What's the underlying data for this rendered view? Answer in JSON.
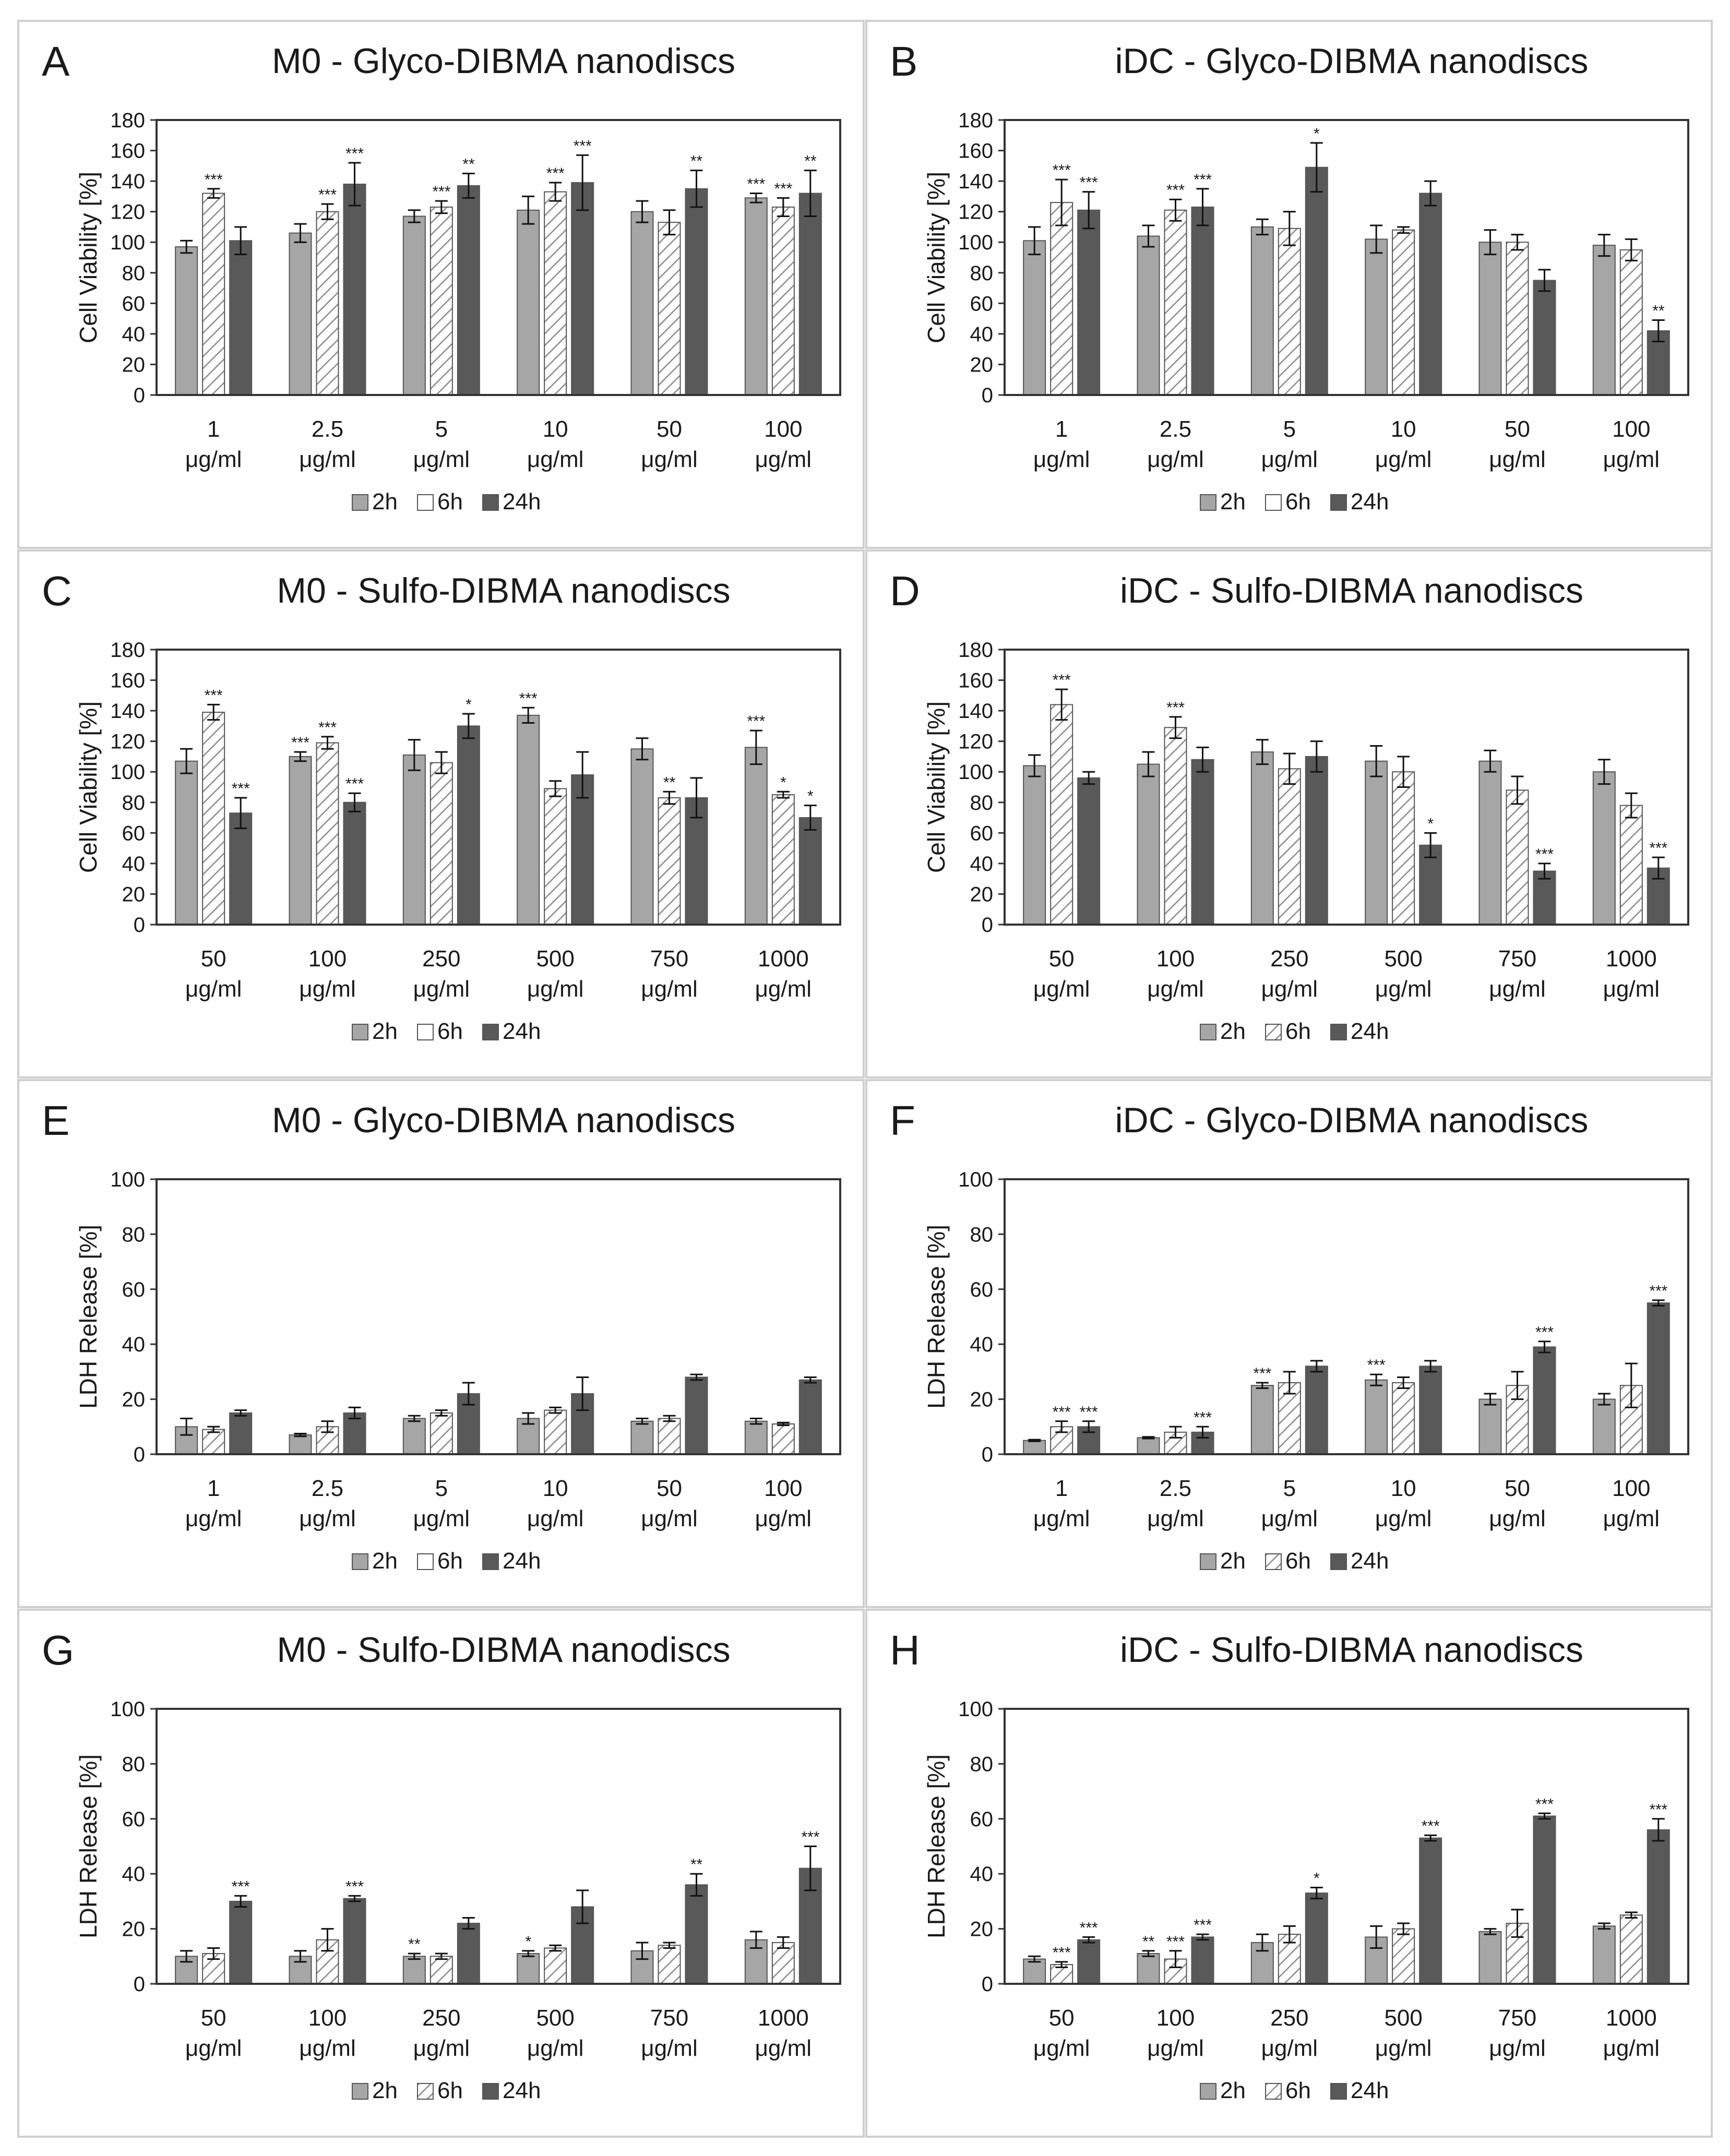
{
  "figure": {
    "legend_entries": [
      "2h",
      "6h",
      "24h"
    ],
    "series_colors": {
      "2h": "#a6a6a6",
      "6h": "#ffffff",
      "24h": "#595959"
    },
    "hatch_color": "#8c8c8c",
    "frame_color": "#333333",
    "text_color": "#1a1a1a"
  },
  "chart_data": [
    {
      "panel": "A",
      "type": "bar",
      "title": "M0 - Glyco-DIBMA nanodiscs",
      "ylabel": "Cell Viability [%]",
      "ylim": [
        0,
        180
      ],
      "ytick_step": 20,
      "categories": [
        [
          "1",
          "μg/ml"
        ],
        [
          "2.5",
          "μg/ml"
        ],
        [
          "5",
          "μg/ml"
        ],
        [
          "10",
          "μg/ml"
        ],
        [
          "50",
          "μg/ml"
        ],
        [
          "100",
          "μg/ml"
        ]
      ],
      "legend_hatched": [
        false,
        false,
        false
      ],
      "series": [
        {
          "name": "2h",
          "values": [
            97,
            106,
            117,
            121,
            120,
            129
          ],
          "errors": [
            4,
            6,
            4,
            9,
            7,
            3
          ],
          "sig": [
            "",
            "",
            "",
            "",
            "",
            "***"
          ]
        },
        {
          "name": "6h",
          "values": [
            132,
            120,
            123,
            133,
            113,
            123
          ],
          "errors": [
            3,
            5,
            4,
            6,
            8,
            6
          ],
          "sig": [
            "***",
            "***",
            "***",
            "***",
            "",
            "***"
          ]
        },
        {
          "name": "24h",
          "values": [
            101,
            138,
            137,
            139,
            135,
            132
          ],
          "errors": [
            9,
            14,
            8,
            18,
            12,
            15
          ],
          "sig": [
            "",
            "***",
            "**",
            "***",
            "**",
            "**"
          ]
        }
      ]
    },
    {
      "panel": "B",
      "type": "bar",
      "title": "iDC - Glyco-DIBMA nanodiscs",
      "ylabel": "Cell Viability [%]",
      "ylim": [
        0,
        180
      ],
      "ytick_step": 20,
      "categories": [
        [
          "1",
          "μg/ml"
        ],
        [
          "2.5",
          "μg/ml"
        ],
        [
          "5",
          "μg/ml"
        ],
        [
          "10",
          "μg/ml"
        ],
        [
          "50",
          "μg/ml"
        ],
        [
          "100",
          "μg/ml"
        ]
      ],
      "legend_hatched": [
        false,
        false,
        false
      ],
      "series": [
        {
          "name": "2h",
          "values": [
            101,
            104,
            110,
            102,
            100,
            98
          ],
          "errors": [
            9,
            7,
            5,
            9,
            8,
            7
          ],
          "sig": [
            "",
            "",
            "",
            "",
            "",
            ""
          ]
        },
        {
          "name": "6h",
          "values": [
            126,
            121,
            109,
            108,
            100,
            95
          ],
          "errors": [
            15,
            7,
            11,
            2,
            5,
            7
          ],
          "sig": [
            "***",
            "***",
            "",
            "",
            "",
            ""
          ]
        },
        {
          "name": "24h",
          "values": [
            121,
            123,
            149,
            132,
            75,
            42
          ],
          "errors": [
            12,
            12,
            16,
            8,
            7,
            7
          ],
          "sig": [
            "***",
            "***",
            "*",
            "",
            "",
            "**"
          ]
        }
      ]
    },
    {
      "panel": "C",
      "type": "bar",
      "title": "M0 - Sulfo-DIBMA nanodiscs",
      "ylabel": "Cell Viability [%]",
      "ylim": [
        0,
        180
      ],
      "ytick_step": 20,
      "categories": [
        [
          "50",
          "μg/ml"
        ],
        [
          "100",
          "μg/ml"
        ],
        [
          "250",
          "μg/ml"
        ],
        [
          "500",
          "μg/ml"
        ],
        [
          "750",
          "μg/ml"
        ],
        [
          "1000",
          "μg/ml"
        ]
      ],
      "legend_hatched": [
        false,
        false,
        false
      ],
      "series": [
        {
          "name": "2h",
          "values": [
            107,
            110,
            111,
            137,
            115,
            116
          ],
          "errors": [
            8,
            3,
            10,
            5,
            7,
            11
          ],
          "sig": [
            "",
            "***",
            "",
            "***",
            "",
            "***"
          ]
        },
        {
          "name": "6h",
          "values": [
            139,
            119,
            106,
            89,
            83,
            85
          ],
          "errors": [
            5,
            4,
            7,
            5,
            4,
            2
          ],
          "sig": [
            "***",
            "***",
            "",
            "",
            "**",
            "*"
          ]
        },
        {
          "name": "24h",
          "values": [
            73,
            80,
            130,
            98,
            83,
            70
          ],
          "errors": [
            10,
            6,
            8,
            15,
            13,
            8
          ],
          "sig": [
            "***",
            "***",
            "*",
            "",
            "",
            "*"
          ]
        }
      ]
    },
    {
      "panel": "D",
      "type": "bar",
      "title": "iDC - Sulfo-DIBMA nanodiscs",
      "ylabel": "Cell Viability [%]",
      "ylim": [
        0,
        180
      ],
      "ytick_step": 20,
      "categories": [
        [
          "50",
          "μg/ml"
        ],
        [
          "100",
          "μg/ml"
        ],
        [
          "250",
          "μg/ml"
        ],
        [
          "500",
          "μg/ml"
        ],
        [
          "750",
          "μg/ml"
        ],
        [
          "1000",
          "μg/ml"
        ]
      ],
      "legend_hatched": [
        false,
        true,
        false
      ],
      "series": [
        {
          "name": "2h",
          "values": [
            104,
            105,
            113,
            107,
            107,
            100
          ],
          "errors": [
            7,
            8,
            8,
            10,
            7,
            8
          ],
          "sig": [
            "",
            "",
            "",
            "",
            "",
            ""
          ]
        },
        {
          "name": "6h",
          "values": [
            144,
            129,
            102,
            100,
            88,
            78
          ],
          "errors": [
            10,
            7,
            10,
            10,
            9,
            8
          ],
          "sig": [
            "***",
            "***",
            "",
            "",
            "",
            ""
          ]
        },
        {
          "name": "24h",
          "values": [
            96,
            108,
            110,
            52,
            35,
            37
          ],
          "errors": [
            4,
            8,
            10,
            8,
            5,
            7
          ],
          "sig": [
            "",
            "",
            "",
            "*",
            "***",
            "***"
          ]
        }
      ]
    },
    {
      "panel": "E",
      "type": "bar",
      "title": "M0 - Glyco-DIBMA nanodiscs",
      "ylabel": "LDH Release [%]",
      "ylim": [
        0,
        100
      ],
      "ytick_step": 20,
      "categories": [
        [
          "1",
          "μg/ml"
        ],
        [
          "2.5",
          "μg/ml"
        ],
        [
          "5",
          "μg/ml"
        ],
        [
          "10",
          "μg/ml"
        ],
        [
          "50",
          "μg/ml"
        ],
        [
          "100",
          "μg/ml"
        ]
      ],
      "legend_hatched": [
        false,
        false,
        false
      ],
      "series": [
        {
          "name": "2h",
          "values": [
            10,
            7,
            13,
            13,
            12,
            12
          ],
          "errors": [
            3,
            0.5,
            1,
            2,
            1,
            1
          ],
          "sig": [
            "",
            "",
            "",
            "",
            "",
            ""
          ]
        },
        {
          "name": "6h",
          "values": [
            9,
            10,
            15,
            16,
            13,
            11
          ],
          "errors": [
            1,
            2,
            1,
            1,
            1,
            0.5
          ],
          "sig": [
            "",
            "",
            "",
            "",
            "",
            ""
          ]
        },
        {
          "name": "24h",
          "values": [
            15,
            15,
            22,
            22,
            28,
            27
          ],
          "errors": [
            1,
            2,
            4,
            6,
            1,
            1
          ],
          "sig": [
            "",
            "",
            "",
            "",
            "",
            ""
          ]
        }
      ]
    },
    {
      "panel": "F",
      "type": "bar",
      "title": "iDC - Glyco-DIBMA nanodiscs",
      "ylabel": "LDH Release [%]",
      "ylim": [
        0,
        100
      ],
      "ytick_step": 20,
      "categories": [
        [
          "1",
          "μg/ml"
        ],
        [
          "2.5",
          "μg/ml"
        ],
        [
          "5",
          "μg/ml"
        ],
        [
          "10",
          "μg/ml"
        ],
        [
          "50",
          "μg/ml"
        ],
        [
          "100",
          "μg/ml"
        ]
      ],
      "legend_hatched": [
        false,
        true,
        false
      ],
      "series": [
        {
          "name": "2h",
          "values": [
            5,
            6,
            25,
            27,
            20,
            20
          ],
          "errors": [
            0.3,
            0.3,
            1,
            2,
            2,
            2
          ],
          "sig": [
            "",
            "",
            "***",
            "***",
            "",
            ""
          ]
        },
        {
          "name": "6h",
          "values": [
            10,
            8,
            26,
            26,
            25,
            25
          ],
          "errors": [
            2,
            2,
            4,
            2,
            5,
            8
          ],
          "sig": [
            "***",
            "",
            "",
            "",
            "",
            ""
          ]
        },
        {
          "name": "24h",
          "values": [
            10,
            8,
            32,
            32,
            39,
            55
          ],
          "errors": [
            2,
            2,
            2,
            2,
            2,
            1
          ],
          "sig": [
            "***",
            "***",
            "",
            "",
            "***",
            "***"
          ]
        }
      ]
    },
    {
      "panel": "G",
      "type": "bar",
      "title": "M0 - Sulfo-DIBMA nanodiscs",
      "ylabel": "LDH Release [%]",
      "ylim": [
        0,
        100
      ],
      "ytick_step": 20,
      "categories": [
        [
          "50",
          "μg/ml"
        ],
        [
          "100",
          "μg/ml"
        ],
        [
          "250",
          "μg/ml"
        ],
        [
          "500",
          "μg/ml"
        ],
        [
          "750",
          "μg/ml"
        ],
        [
          "1000",
          "μg/ml"
        ]
      ],
      "legend_hatched": [
        false,
        true,
        false
      ],
      "series": [
        {
          "name": "2h",
          "values": [
            10,
            10,
            10,
            11,
            12,
            16
          ],
          "errors": [
            2,
            2,
            1,
            1,
            3,
            3
          ],
          "sig": [
            "",
            "",
            "**",
            "*",
            "",
            ""
          ]
        },
        {
          "name": "6h",
          "values": [
            11,
            16,
            10,
            13,
            14,
            15
          ],
          "errors": [
            2,
            4,
            1,
            1,
            1,
            2
          ],
          "sig": [
            "",
            "",
            "",
            "",
            "",
            ""
          ]
        },
        {
          "name": "24h",
          "values": [
            30,
            31,
            22,
            28,
            36,
            42
          ],
          "errors": [
            2,
            1,
            2,
            6,
            4,
            8
          ],
          "sig": [
            "***",
            "***",
            "",
            "",
            "**",
            "***"
          ]
        }
      ]
    },
    {
      "panel": "H",
      "type": "bar",
      "title": "iDC - Sulfo-DIBMA nanodiscs",
      "ylabel": "LDH Release [%]",
      "ylim": [
        0,
        100
      ],
      "ytick_step": 20,
      "categories": [
        [
          "50",
          "μg/ml"
        ],
        [
          "100",
          "μg/ml"
        ],
        [
          "250",
          "μg/ml"
        ],
        [
          "500",
          "μg/ml"
        ],
        [
          "750",
          "μg/ml"
        ],
        [
          "1000",
          "μg/ml"
        ]
      ],
      "legend_hatched": [
        false,
        true,
        false
      ],
      "series": [
        {
          "name": "2h",
          "values": [
            9,
            11,
            15,
            17,
            19,
            21
          ],
          "errors": [
            1,
            1,
            3,
            4,
            1,
            1
          ],
          "sig": [
            "",
            "**",
            "",
            "",
            "",
            ""
          ]
        },
        {
          "name": "6h",
          "values": [
            7,
            9,
            18,
            20,
            22,
            25
          ],
          "errors": [
            1,
            3,
            3,
            2,
            5,
            1
          ],
          "sig": [
            "***",
            "***",
            "",
            "",
            "",
            ""
          ]
        },
        {
          "name": "24h",
          "values": [
            16,
            17,
            33,
            53,
            61,
            56
          ],
          "errors": [
            1,
            1,
            2,
            1,
            1,
            4
          ],
          "sig": [
            "***",
            "***",
            "*",
            "***",
            "***",
            "***"
          ]
        }
      ]
    }
  ]
}
